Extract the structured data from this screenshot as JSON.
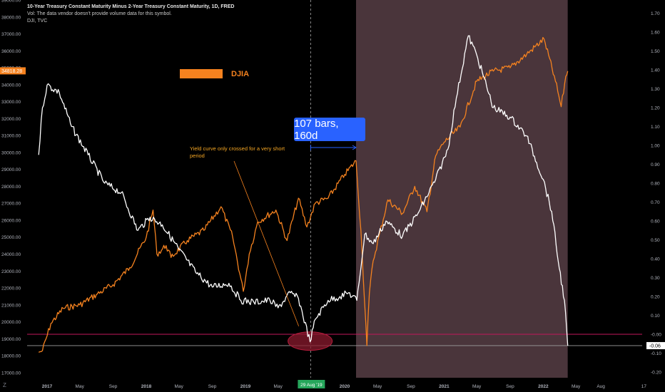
{
  "header": {
    "title": "10-Year Treasury Constant Maturity Minus 2-Year Treasury Constant Maturity, 1D, FRED",
    "line2": "Vol: The data vendor doesn't provide volume data for this symbol.",
    "line3": "DJI, TVC"
  },
  "logo_text": "Z",
  "colors": {
    "background": "#000000",
    "shaded_region": "#4a353b",
    "djia": "#f5821f",
    "spread": "#ffffff",
    "zero_line": "#c2185b",
    "ellipse": "#8b1a2e",
    "measure": "#2962ff",
    "annotation": "#f5a623",
    "axis_text": "#b2b5be"
  },
  "chart_data": {
    "type": "line",
    "x_ticks": [
      "2017",
      "May",
      "Sep",
      "2018",
      "May",
      "Sep",
      "2019",
      "May",
      "29 Aug '19",
      "2020",
      "May",
      "Sep",
      "2021",
      "May",
      "Sep",
      "2022",
      "May",
      "Aug",
      "17"
    ],
    "left_axis": {
      "ticks": [
        "39000.00",
        "38000.00",
        "37000.00",
        "36000.00",
        "35000.00",
        "34000.00",
        "33000.00",
        "32000.00",
        "31000.00",
        "30000.00",
        "29000.00",
        "28000.00",
        "27000.00",
        "26000.00",
        "25000.00",
        "24000.00",
        "23000.00",
        "22000.00",
        "21000.00",
        "20000.00",
        "19000.00",
        "18000.00",
        "17000.00"
      ],
      "range": [
        16700,
        39000
      ],
      "current_value_label": "34818.28"
    },
    "right_axis": {
      "ticks": [
        "1.70",
        "1.60",
        "1.50",
        "1.40",
        "1.30",
        "1.20",
        "1.10",
        "1.00",
        "0.90",
        "0.80",
        "0.70",
        "0.60",
        "0.50",
        "0.40",
        "0.30",
        "0.20",
        "0.10",
        "-0.00",
        "-0.10",
        "-0.20"
      ],
      "range": [
        -0.23,
        1.77
      ],
      "current_value_label": "-0.06"
    },
    "series": [
      {
        "name": "DJIA",
        "axis": "left",
        "x": [
          "2016-12-01",
          "2016-12-15",
          "2017-01-15",
          "2017-03-01",
          "2017-05-01",
          "2017-07-01",
          "2017-09-01",
          "2017-11-01",
          "2018-01-01",
          "2018-01-26",
          "2018-02-09",
          "2018-03-15",
          "2018-04-02",
          "2018-06-01",
          "2018-08-01",
          "2018-10-03",
          "2018-11-15",
          "2018-12-24",
          "2019-01-15",
          "2019-02-15",
          "2019-04-23",
          "2019-06-03",
          "2019-07-15",
          "2019-08-15",
          "2019-09-15",
          "2019-11-01",
          "2020-01-01",
          "2020-02-12",
          "2020-03-01",
          "2020-03-23",
          "2020-04-01",
          "2020-04-15",
          "2020-06-08",
          "2020-08-01",
          "2020-09-15",
          "2020-10-30",
          "2020-12-01",
          "2021-01-01",
          "2021-03-01",
          "2021-05-01",
          "2021-07-01",
          "2021-09-01",
          "2021-11-01",
          "2022-01-04",
          "2022-02-15",
          "2022-03-08",
          "2022-03-25",
          "2022-04-01"
        ],
        "y": [
          18200,
          18300,
          19900,
          20800,
          21000,
          21600,
          22200,
          23200,
          25000,
          26600,
          24000,
          24500,
          23800,
          24800,
          25400,
          26800,
          25000,
          21800,
          24000,
          25900,
          26600,
          24800,
          27300,
          25600,
          27000,
          27300,
          28700,
          29500,
          25400,
          18600,
          21700,
          23600,
          27200,
          26400,
          28000,
          26500,
          29800,
          30600,
          31500,
          34200,
          34800,
          35000,
          35800,
          36700,
          34200,
          32700,
          34500,
          34800
        ]
      },
      {
        "name": "10Y-2Y spread",
        "axis": "right",
        "x": [
          "2016-12-01",
          "2016-12-15",
          "2017-01-01",
          "2017-02-15",
          "2017-04-01",
          "2017-06-01",
          "2017-08-01",
          "2017-10-01",
          "2017-12-01",
          "2018-01-15",
          "2018-03-01",
          "2018-05-01",
          "2018-07-01",
          "2018-09-01",
          "2018-11-01",
          "2018-12-15",
          "2019-02-01",
          "2019-04-01",
          "2019-05-01",
          "2019-06-15",
          "2019-07-15",
          "2019-08-27",
          "2019-09-15",
          "2019-11-01",
          "2019-12-15",
          "2020-01-15",
          "2020-02-15",
          "2020-03-15",
          "2020-04-15",
          "2020-06-01",
          "2020-08-01",
          "2020-10-01",
          "2020-12-01",
          "2021-01-15",
          "2021-02-15",
          "2021-03-31",
          "2021-05-01",
          "2021-07-01",
          "2021-09-01",
          "2021-11-01",
          "2022-01-01",
          "2022-02-01",
          "2022-03-01",
          "2022-03-20",
          "2022-04-01"
        ],
        "y": [
          0.95,
          1.2,
          1.32,
          1.28,
          1.1,
          0.95,
          0.8,
          0.75,
          0.55,
          0.62,
          0.58,
          0.45,
          0.33,
          0.25,
          0.27,
          0.18,
          0.17,
          0.18,
          0.14,
          0.22,
          0.19,
          -0.04,
          0.08,
          0.18,
          0.2,
          0.22,
          0.18,
          0.53,
          0.48,
          0.6,
          0.52,
          0.65,
          0.82,
          0.98,
          1.25,
          1.58,
          1.48,
          1.2,
          1.15,
          1.05,
          0.82,
          0.65,
          0.35,
          0.18,
          -0.06
        ]
      }
    ],
    "shaded_range": [
      "2020-02-12",
      "2022-04-01"
    ],
    "vertical_marker": "2019-08-29",
    "zero_line": 0,
    "measure": {
      "label": "107 bars, 160d",
      "from": "2019-08-29",
      "to": "2020-02-12"
    },
    "annotation": {
      "text": "Yield curve only crossed for a very short period",
      "target": [
        "2019-08-27",
        -0.04
      ]
    },
    "legend": [
      "DJIA"
    ],
    "legend_position": "top-left"
  }
}
